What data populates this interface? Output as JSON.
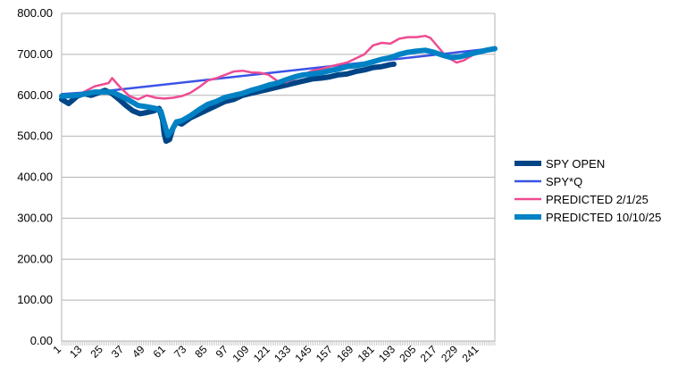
{
  "chart_data": {
    "type": "line",
    "title": "",
    "xlabel": "",
    "ylabel": "",
    "ylim": [
      0,
      800
    ],
    "y_ticks": [
      "0.00",
      "100.00",
      "200.00",
      "300.00",
      "400.00",
      "500.00",
      "600.00",
      "700.00",
      "800.00"
    ],
    "x_range": [
      1,
      250
    ],
    "x_ticks": [
      "1",
      "13",
      "25",
      "37",
      "49",
      "61",
      "73",
      "85",
      "97",
      "109",
      "121",
      "133",
      "145",
      "157",
      "169",
      "181",
      "193",
      "205",
      "217",
      "229",
      "241"
    ],
    "grid": "horizontal",
    "legend_position": "right",
    "series": [
      {
        "name": "SPY OPEN",
        "color": "#004586",
        "x": [
          1,
          5,
          10,
          14,
          18,
          22,
          26,
          30,
          34,
          38,
          42,
          46,
          50,
          54,
          57,
          59,
          60,
          61,
          63,
          65,
          67,
          70,
          75,
          80,
          85,
          90,
          95,
          100,
          105,
          110,
          115,
          120,
          125,
          130,
          135,
          140,
          145,
          150,
          155,
          160,
          165,
          170,
          175,
          180,
          185,
          190,
          192
        ],
        "y": [
          590,
          580,
          598,
          604,
          600,
          606,
          612,
          604,
          590,
          575,
          562,
          555,
          558,
          562,
          568,
          540,
          505,
          488,
          492,
          520,
          535,
          530,
          545,
          555,
          565,
          575,
          585,
          590,
          600,
          605,
          610,
          615,
          620,
          625,
          630,
          635,
          640,
          642,
          645,
          650,
          652,
          658,
          662,
          668,
          670,
          675,
          676
        ]
      },
      {
        "name": "SPY*Q",
        "color": "#3b53e6",
        "x": [
          1,
          25,
          250
        ],
        "y": [
          603,
          610,
          715
        ]
      },
      {
        "name": "PREDICTED 2/1/25",
        "color": "#ef4b91",
        "x": [
          1,
          10,
          20,
          28,
          30,
          35,
          40,
          45,
          50,
          55,
          60,
          65,
          70,
          75,
          80,
          85,
          90,
          95,
          100,
          105,
          110,
          115,
          120,
          125,
          130,
          135,
          140,
          145,
          150,
          155,
          160,
          165,
          170,
          175,
          180,
          185,
          190,
          195,
          200,
          205,
          210,
          213,
          218,
          222,
          228,
          232,
          238,
          244,
          250
        ],
        "y": [
          595,
          600,
          622,
          630,
          642,
          618,
          598,
          590,
          600,
          594,
          592,
          594,
          598,
          606,
          620,
          636,
          642,
          650,
          658,
          660,
          656,
          655,
          650,
          635,
          632,
          640,
          650,
          660,
          664,
          670,
          675,
          680,
          690,
          700,
          722,
          728,
          726,
          738,
          742,
          742,
          745,
          740,
          715,
          695,
          680,
          685,
          700,
          710,
          712
        ]
      },
      {
        "name": "PREDICTED 10/10/25",
        "color": "#0082c4",
        "x": [
          1,
          10,
          20,
          30,
          38,
          45,
          50,
          55,
          58,
          60,
          62,
          64,
          67,
          70,
          75,
          80,
          85,
          90,
          95,
          100,
          105,
          110,
          115,
          120,
          125,
          130,
          135,
          140,
          145,
          150,
          155,
          160,
          165,
          170,
          175,
          180,
          185,
          190,
          195,
          200,
          205,
          210,
          215,
          220,
          225,
          230,
          235,
          240,
          245,
          250
        ],
        "y": [
          598,
          600,
          608,
          608,
          592,
          575,
          572,
          568,
          562,
          532,
          502,
          512,
          535,
          538,
          550,
          565,
          578,
          585,
          595,
          600,
          605,
          612,
          618,
          625,
          630,
          638,
          645,
          650,
          652,
          655,
          660,
          664,
          670,
          672,
          676,
          682,
          688,
          692,
          700,
          705,
          708,
          710,
          705,
          698,
          692,
          694,
          700,
          705,
          710,
          714
        ]
      }
    ]
  }
}
